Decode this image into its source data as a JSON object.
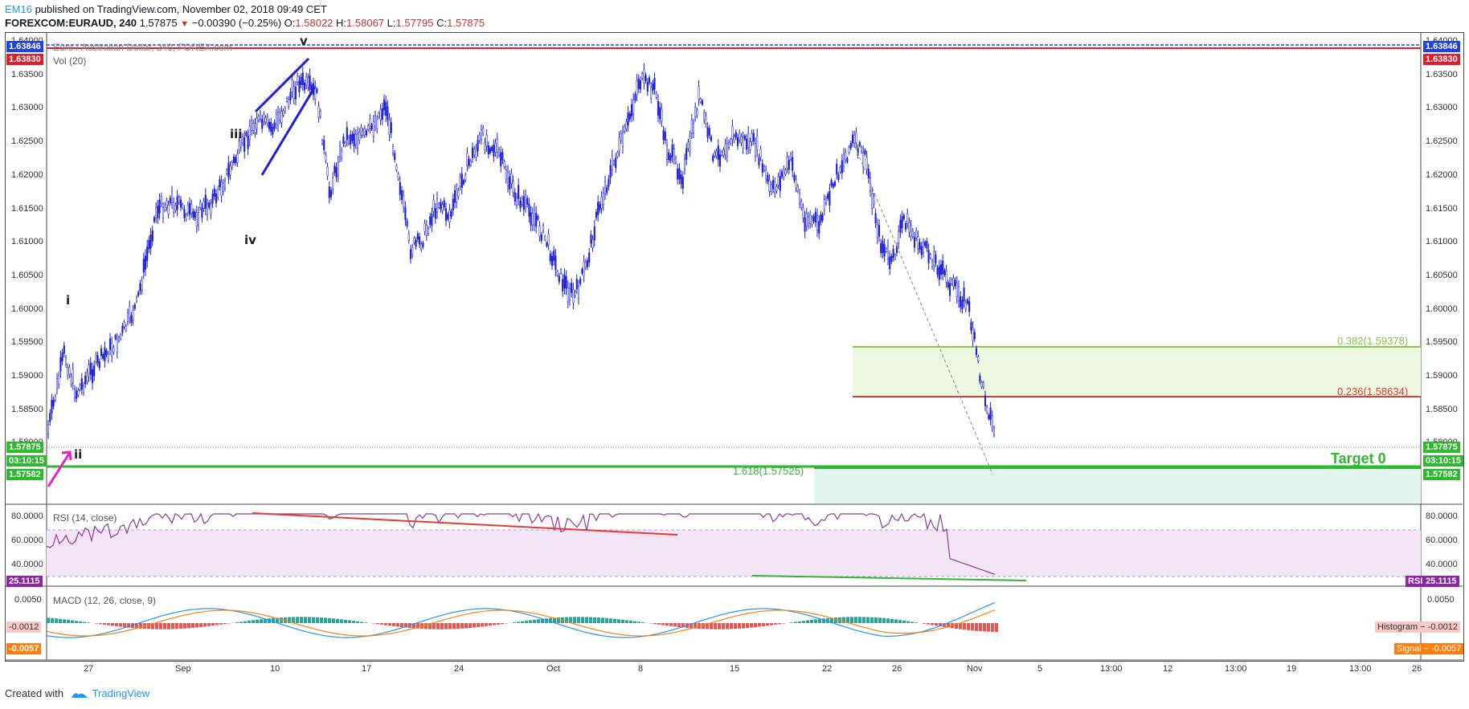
{
  "header": {
    "author": "EM16",
    "published_text": " published on TradingView.com, November 02, 2018 09:49 CET",
    "symbol": "FOREXCOM:EURAUD, 240",
    "last": "1.57875",
    "change": "−0.00390 (−0.25%)",
    "o_label": "O:",
    "o_value": "1.58022",
    "h_label": "H:",
    "h_value": "1.58067",
    "l_label": "L:",
    "l_value": "1.57795",
    "c_label": "C:",
    "c_value": "1.57875"
  },
  "main_pane": {
    "title": "Euro / Australian Dollar, 240, FOREX.com",
    "vol_label": "Vol (20)",
    "price_labels": [
      "1.64000",
      "1.63500",
      "1.63000",
      "1.62500",
      "1.62000",
      "1.61500",
      "1.61000",
      "1.60500",
      "1.60000",
      "1.59500",
      "1.59000",
      "1.58500",
      "1.58000"
    ],
    "left_boxes": [
      {
        "text": "1.63846",
        "color": "#1e40e8"
      },
      {
        "text": "1.63830",
        "color": "#e11d2a"
      },
      {
        "text": "1.57875",
        "color": "#2eb82e"
      },
      {
        "text": "03:10:15",
        "color": "#2eb82e"
      },
      {
        "text": "1.57582",
        "color": "#2eb82e"
      }
    ],
    "right_boxes": [
      {
        "text": "1.63846",
        "color": "#1e40e8"
      },
      {
        "text": "1.63830",
        "color": "#e11d2a"
      },
      {
        "text": "1.57875",
        "color": "#2eb82e"
      },
      {
        "text": "03:10:15",
        "color": "#2eb82e"
      },
      {
        "text": "1.57582",
        "color": "#2eb82e"
      }
    ],
    "waves": [
      "i",
      "ii",
      "iii",
      "iv",
      "v"
    ],
    "fib_382": "0.382(1.59378)",
    "fib_236": "0.236(1.58634)",
    "fib_1618": "1.618(1.57525)",
    "target_label": "Target 0"
  },
  "rsi_pane": {
    "title": "RSI (14, close)",
    "labels": [
      "80.0000",
      "60.0000",
      "40.0000"
    ],
    "left_box": "25.1115",
    "right_box_tag": "RSI",
    "right_box_value": "25.1115"
  },
  "macd_pane": {
    "title": "MACD (12, 26, close, 9)",
    "labels": [
      "0.0050"
    ],
    "left_box_hist": "-0.0012",
    "left_box_signal": "-0.0057",
    "right_hist": "Histogram − -0.0012",
    "right_signal": "Signal − -0.0057"
  },
  "time_axis": [
    "27",
    "Sep",
    "10",
    "17",
    "24",
    "Oct",
    "8",
    "15",
    "22",
    "26",
    "Nov",
    "5",
    "13:00",
    "12",
    "13:00",
    "19",
    "13:00",
    "26"
  ],
  "footer": {
    "created_with": "Created with",
    "brand": "TradingView"
  },
  "colors": {
    "candle": "#1e1ed8",
    "fib_382": "#8bc34a",
    "fib_236": "#e53935",
    "target": "#2eb82e",
    "rsi_line": "#8e3b9e",
    "macd_line": "#2196f3",
    "signal_line": "#ff7f0e"
  }
}
